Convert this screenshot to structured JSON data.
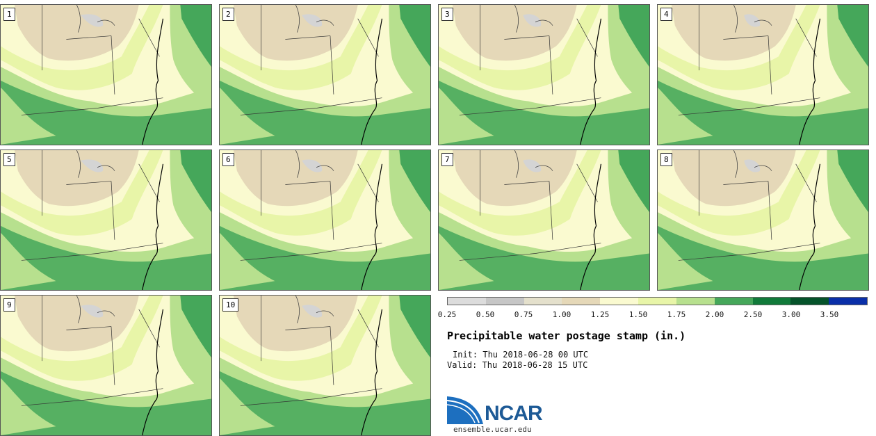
{
  "panels": [
    "1",
    "2",
    "3",
    "4",
    "5",
    "6",
    "7",
    "8",
    "9",
    "10"
  ],
  "colorbar": {
    "colors": [
      "#dcdcdc",
      "#c6c6c6",
      "#e4e0cc",
      "#e5d8b8",
      "#fafad0",
      "#e8f5a8",
      "#b7e08e",
      "#45a75a",
      "#117a3a",
      "#05532a",
      "#0a2fa8"
    ],
    "ticks": [
      "0.25",
      "0.50",
      "0.75",
      "1.00",
      "1.25",
      "1.50",
      "1.75",
      "2.00",
      "2.50",
      "3.00",
      "3.50"
    ]
  },
  "title": "Precipitable water postage stamp (in.)",
  "init": "Init: Thu 2018-06-28 00 UTC",
  "valid": "Valid: Thu 2018-06-28 15 UTC",
  "logo_text": "NCAR",
  "url": "ensemble.ucar.edu",
  "map_colors": {
    "low_brown": "#e5d8b8",
    "pale_yellow": "#fafad0",
    "light_yellow_green": "#e8f5a8",
    "light_green": "#b7e08e",
    "medium_green": "#45a75a",
    "gray": "#d4d4d4"
  }
}
